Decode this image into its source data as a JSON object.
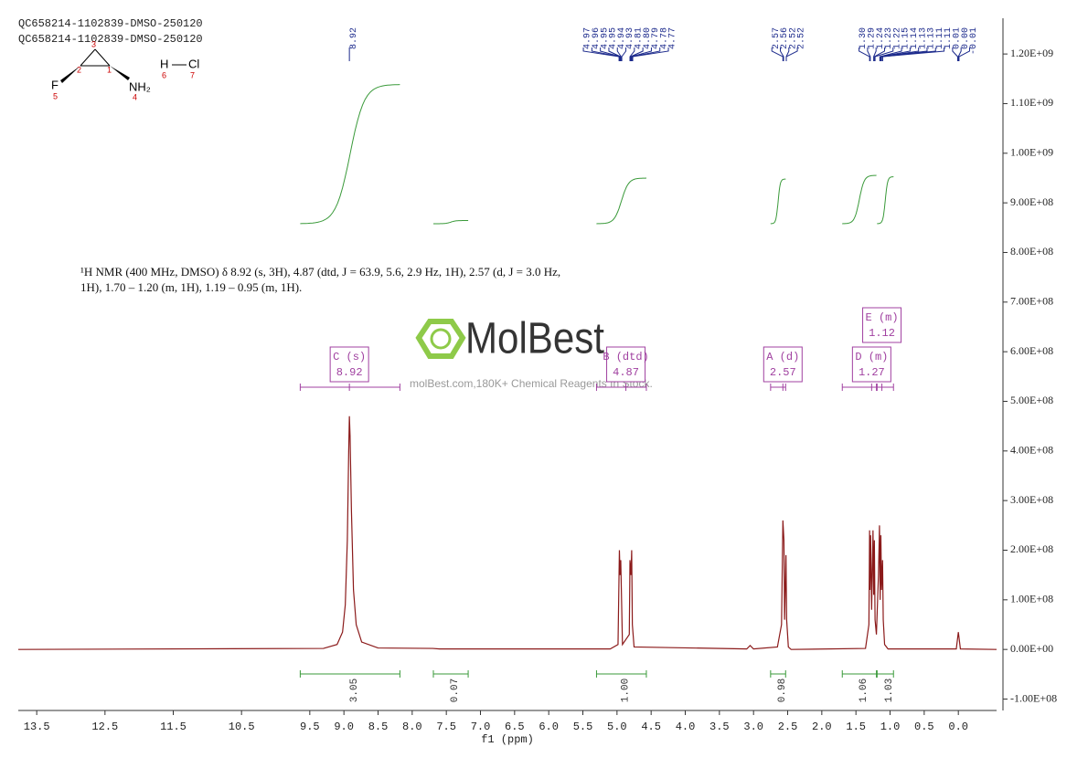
{
  "header": [
    "QC658214-1102839-DMSO-250120",
    "QC658214-1102839-DMSO-250120"
  ],
  "structure": {
    "atoms": [
      "F",
      "NH₂",
      "H",
      "Cl"
    ],
    "numbers": [
      "1",
      "2",
      "3",
      "4",
      "5",
      "6",
      "7"
    ]
  },
  "description": "¹H NMR (400 MHz, DMSO) δ 8.92 (s, 3H), 4.87 (dtd, J = 63.9, 5.6, 2.9 Hz, 1H), 2.57 (d, J = 3.0 Hz, 1H), 1.70 – 1.20 (m, 1H), 1.19 – 0.95 (m, 1H).",
  "watermark": {
    "brand": "MolBest",
    "tagline": "molBest.com,180K+ Chemical Reagents In Stock."
  },
  "chart_data": {
    "type": "line",
    "xlabel": "f1 (ppm)",
    "xlim": [
      13.77,
      -0.56
    ],
    "xticks": [
      13.5,
      12.5,
      11.5,
      10.5,
      9.5,
      {
        "value": 9,
        "label": "9.0"
      },
      8.5,
      {
        "value": 8,
        "label": "8.0"
      },
      7.5,
      {
        "value": 7,
        "label": "7.0"
      },
      6.5,
      {
        "value": 6,
        "label": "6.0"
      },
      5.5,
      {
        "value": 5,
        "label": "5.0"
      },
      4.5,
      {
        "value": 4,
        "label": "4.0"
      },
      3.5,
      {
        "value": 3,
        "label": "3.0"
      },
      2.5,
      {
        "value": 2,
        "label": "2.0"
      },
      1.5,
      {
        "value": 1,
        "label": "1.0"
      },
      0.5,
      {
        "value": 0,
        "label": "0.0"
      }
    ],
    "ylim": [
      -123000000,
      1272000000
    ],
    "yticks": [
      {
        "value": -100000000,
        "label": "-1.00E+08"
      },
      {
        "value": 0,
        "label": "0.00E+00"
      },
      {
        "value": 100000000,
        "label": "1.00E+08"
      },
      {
        "value": 200000000,
        "label": "2.00E+08"
      },
      {
        "value": 300000000,
        "label": "3.00E+08"
      },
      {
        "value": 400000000,
        "label": "4.00E+08"
      },
      {
        "value": 500000000,
        "label": "5.00E+08"
      },
      {
        "value": 600000000,
        "label": "6.00E+08"
      },
      {
        "value": 700000000,
        "label": "7.00E+08"
      },
      {
        "value": 800000000,
        "label": "8.00E+08"
      },
      {
        "value": 900000000,
        "label": "9.00E+08"
      },
      {
        "value": 1000000000,
        "label": "1.00E+09"
      },
      {
        "value": 1100000000,
        "label": "1.10E+09"
      },
      {
        "value": 1200000000,
        "label": "1.20E+09"
      }
    ],
    "series": [
      {
        "color": "#8b1a1a",
        "x": [
          13.77,
          9.3,
          9.1,
          9.02,
          8.98,
          8.95,
          8.93,
          8.92,
          8.91,
          8.89,
          8.86,
          8.82,
          8.74,
          8.5,
          7.7,
          7.6,
          5.1,
          4.985,
          4.965,
          4.955,
          4.945,
          4.92,
          4.82,
          4.81,
          4.795,
          4.785,
          4.775,
          4.75,
          3.1,
          3.05,
          3.0,
          2.65,
          2.59,
          2.57,
          2.555,
          2.545,
          2.525,
          2.515,
          2.49,
          2.45,
          1.36,
          1.31,
          1.3,
          1.295,
          1.285,
          1.27,
          1.25,
          1.24,
          1.23,
          1.22,
          1.2,
          1.17,
          1.155,
          1.145,
          1.135,
          1.125,
          1.11,
          1.1,
          1.08,
          1.03,
          0.03,
          0,
          -0.03,
          -0.56
        ],
        "values": [
          0,
          2000000,
          10000000,
          35000000,
          90000000,
          220000000,
          400000000,
          470000000,
          430000000,
          280000000,
          120000000,
          50000000,
          15000000,
          3000000,
          2000000,
          1000000,
          1000000,
          10000000,
          200000000,
          150000000,
          180000000,
          10000000,
          30000000,
          180000000,
          150000000,
          200000000,
          50000000,
          5000000,
          1000000,
          8000000,
          1000000,
          5000000,
          50000000,
          260000000,
          220000000,
          60000000,
          190000000,
          60000000,
          5000000,
          0,
          2000000,
          50000000,
          240000000,
          120000000,
          230000000,
          80000000,
          240000000,
          110000000,
          220000000,
          60000000,
          30000000,
          150000000,
          250000000,
          100000000,
          230000000,
          120000000,
          180000000,
          60000000,
          10000000,
          1000000,
          1000000,
          35000000,
          1000000,
          0
        ]
      }
    ],
    "peak_groups": [
      [
        8.92
      ],
      [
        4.97,
        4.96,
        4.95,
        4.95,
        4.94,
        4.93,
        4.81,
        {
          "value": 4.8,
          "label": "4.80"
        },
        4.79,
        4.78,
        4.77
      ],
      [
        2.57,
        2.56,
        2.52,
        2.52
      ],
      [
        {
          "value": 1.3,
          "label": "1.30"
        },
        1.29,
        1.24,
        1.23,
        1.22,
        1.15,
        1.14,
        1.13,
        1.13,
        1.11,
        1.11,
        0.01,
        {
          "value": 0,
          "label": "0.00"
        },
        -0.01
      ]
    ],
    "multiplets": [
      {
        "label": "C (s)",
        "shift": 8.92,
        "range": [
          9.64,
          8.18
        ]
      },
      {
        "label": "B (dtd)",
        "shift": 4.87,
        "range": [
          5.3,
          4.57
        ]
      },
      {
        "label": "A (d)",
        "shift": 2.57,
        "range": [
          2.75,
          2.53
        ]
      },
      {
        "label": "D (m)",
        "shift": 1.27,
        "range": [
          1.7,
          1.2
        ]
      },
      {
        "label": "E (m)",
        "shift": 1.12,
        "range": [
          1.19,
          0.95
        ]
      }
    ],
    "integrals": [
      {
        "range": [
          9.64,
          8.18
        ],
        "value": 3.05
      },
      {
        "range": [
          7.69,
          7.18
        ],
        "value": 0.07
      },
      {
        "range": [
          5.3,
          4.57
        ],
        "value": 1,
        "value_label": "1.00"
      },
      {
        "range": [
          2.75,
          2.53
        ],
        "value": 0.98
      },
      {
        "range": [
          1.7,
          1.2
        ],
        "value": 1.06
      },
      {
        "range": [
          1.19,
          0.95
        ],
        "value": 1.03
      }
    ]
  }
}
